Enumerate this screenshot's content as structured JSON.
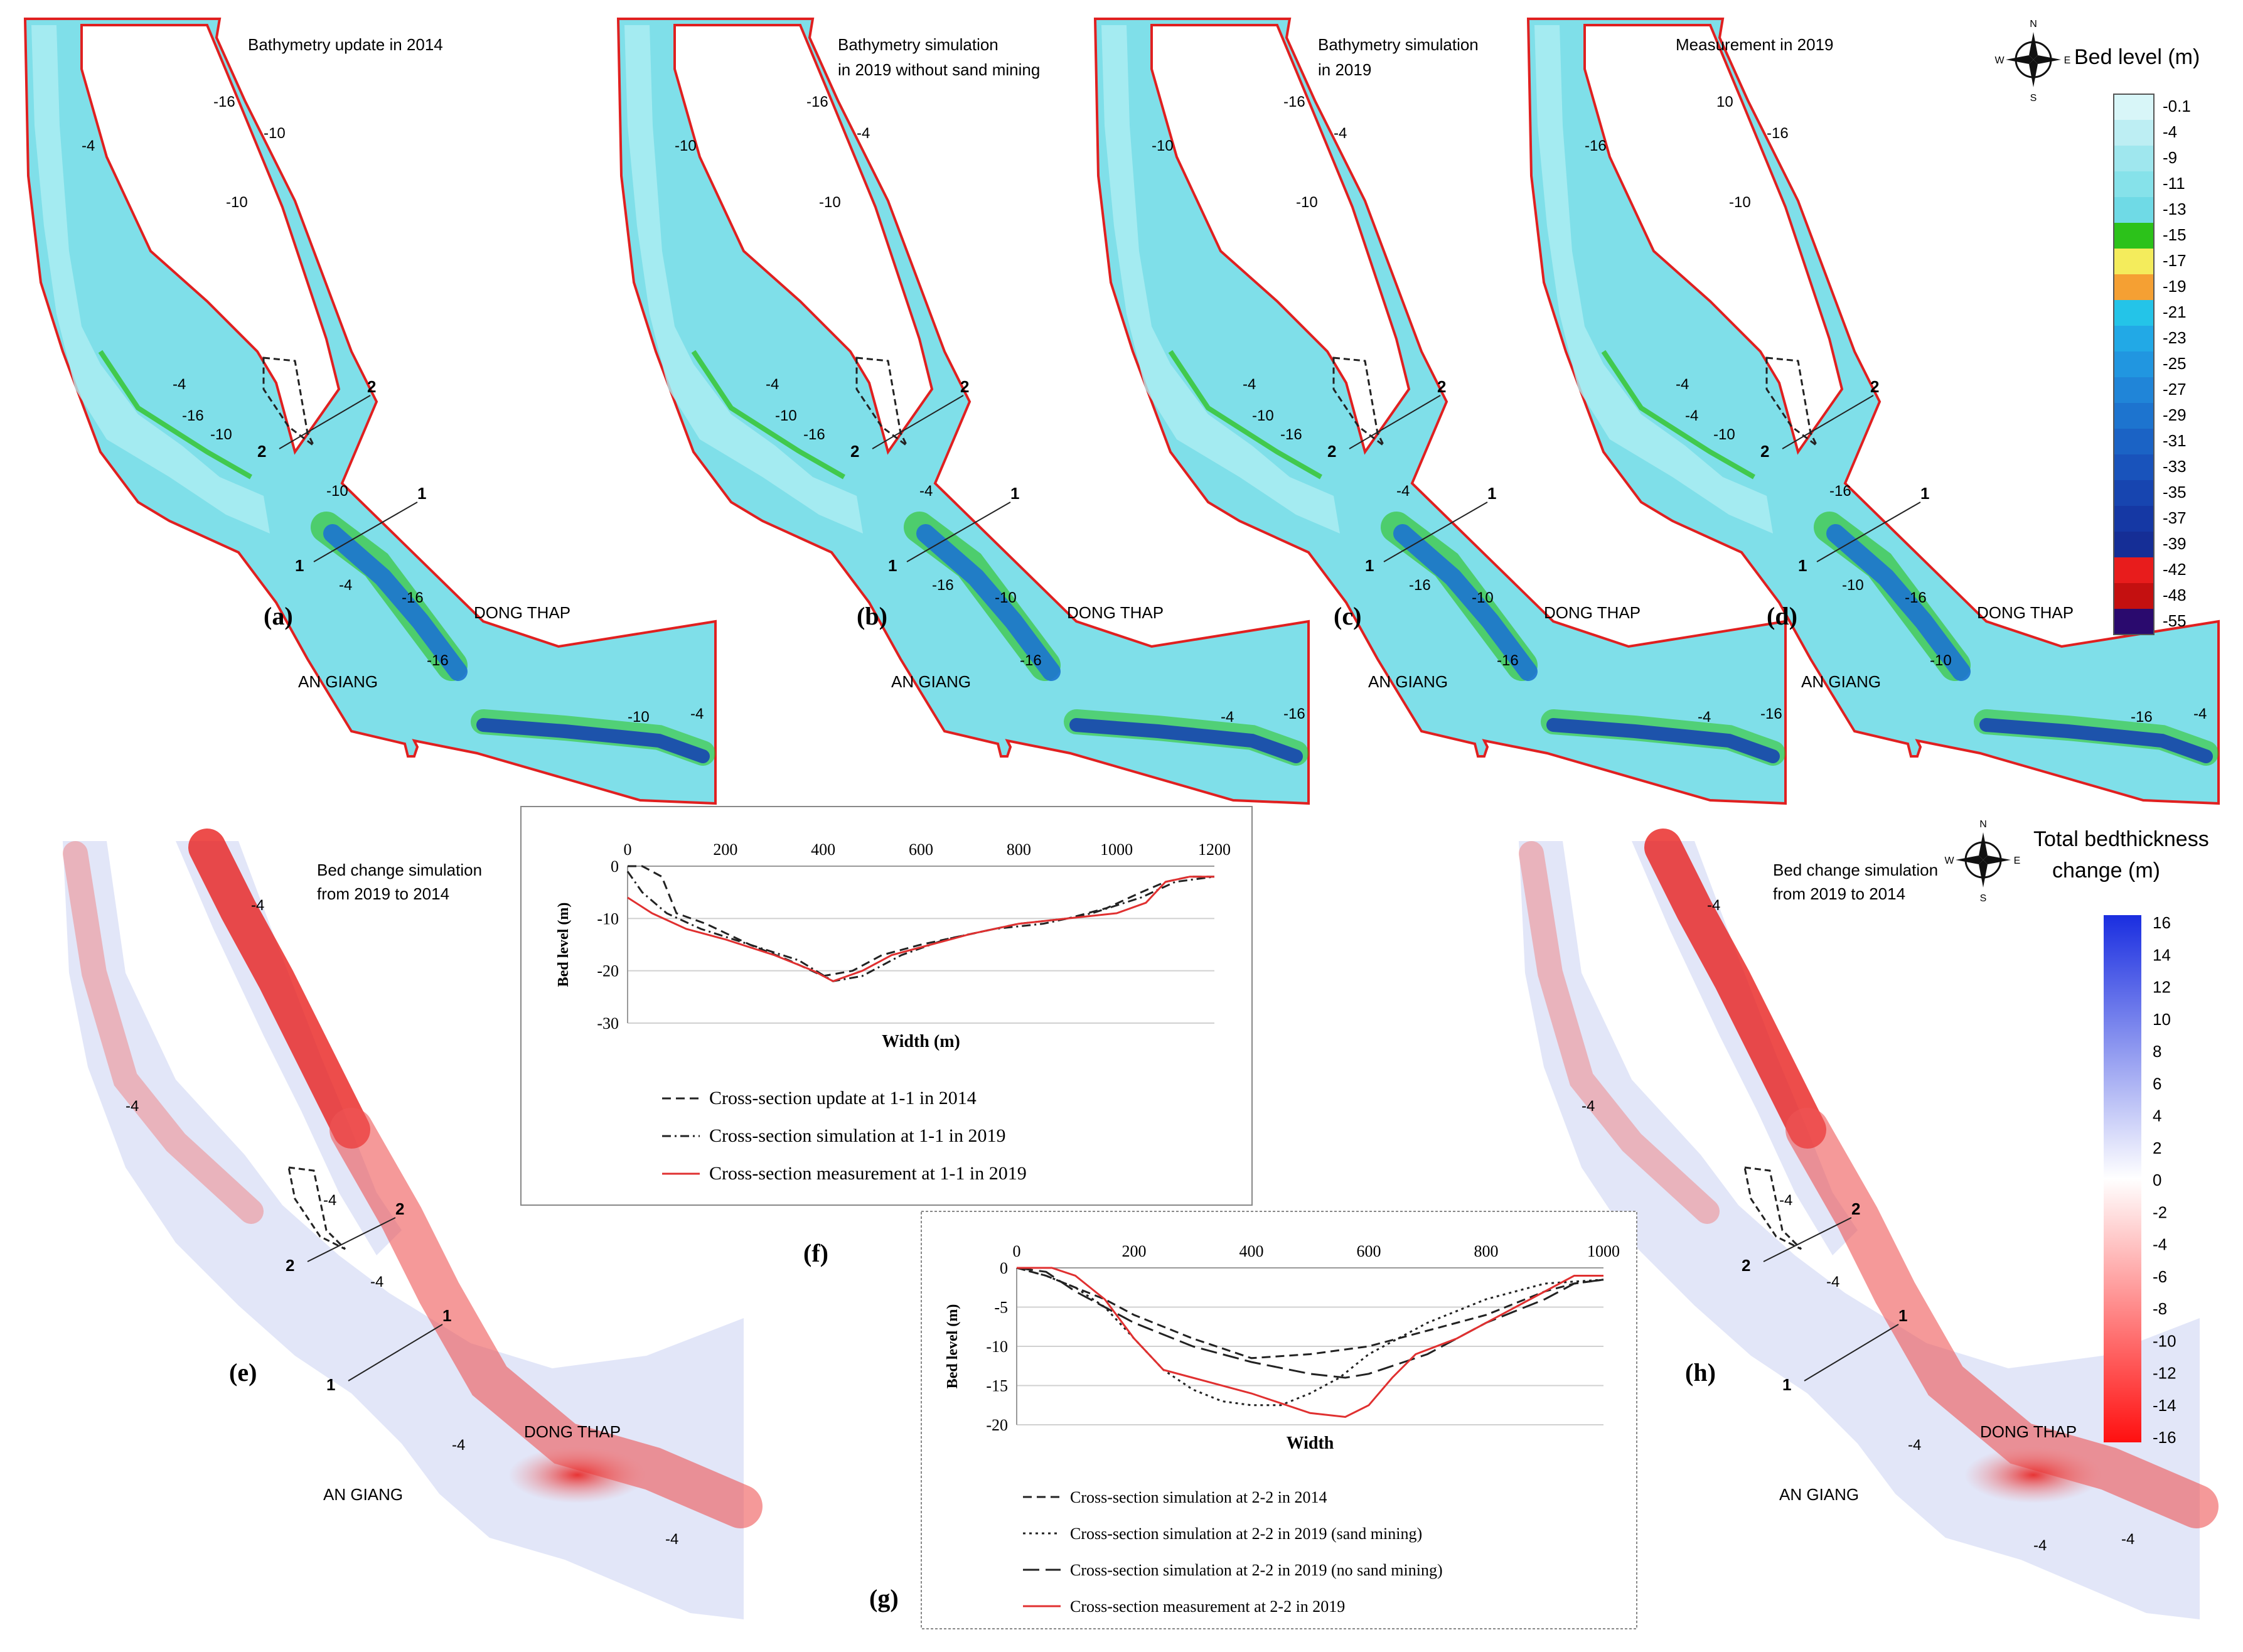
{
  "map_panels": [
    {
      "id": "a",
      "letter": "(a)",
      "title_lines": [
        "Bathymetry update in 2014"
      ],
      "contours": [
        "-4",
        "-16",
        "-10",
        "-10",
        "-4",
        "-10",
        "-16",
        "-4",
        "-10",
        "-16",
        "-16",
        "-10",
        "-4"
      ],
      "sec2_label": "2",
      "sec1_label": "1",
      "province_east": "DONG THAP",
      "province_west": "AN GIANG"
    },
    {
      "id": "b",
      "letter": "(b)",
      "title_lines": [
        "Bathymetry simulation",
        "in 2019 without sand mining"
      ],
      "contours": [
        "-10",
        "-16",
        "-4",
        "-10",
        "-4",
        "-16",
        "-10",
        "-16",
        "-4",
        "-10",
        "-16",
        "-4",
        "-16"
      ],
      "sec2_label": "2",
      "sec1_label": "1",
      "province_east": "DONG THAP",
      "province_west": "AN GIANG"
    },
    {
      "id": "c",
      "letter": "(c)",
      "title_lines": [
        "Bathymetry simulation",
        "in 2019"
      ],
      "contours": [
        "-10",
        "-16",
        "-4",
        "-10",
        "-4",
        "-16",
        "-10",
        "-16",
        "-4",
        "-10",
        "-16",
        "-4",
        "-16"
      ],
      "sec2_label": "2",
      "sec1_label": "1",
      "province_east": "DONG THAP",
      "province_west": "AN GIANG"
    },
    {
      "id": "d",
      "letter": "(d)",
      "title_lines": [
        "Measurement in 2019"
      ],
      "contours": [
        "-16",
        "10",
        "-16",
        "-10",
        "-4",
        "-10",
        "-4",
        "-10",
        "-16",
        "-16",
        "-10",
        "-16",
        "-4"
      ],
      "sec2_label": "2",
      "sec1_label": "1",
      "province_east": "DONG THAP",
      "province_west": "AN GIANG"
    }
  ],
  "bed_legend": {
    "title": "Bed level (m)",
    "labels": [
      "-0.1",
      "-4",
      "-9",
      "-11",
      "-13",
      "-15",
      "-17",
      "-19",
      "-21",
      "-23",
      "-25",
      "-27",
      "-29",
      "-31",
      "-33",
      "-35",
      "-37",
      "-39",
      "-42",
      "-48",
      "-55"
    ],
    "colors": [
      "#d8f6f8",
      "#bdeef3",
      "#9fe7ee",
      "#86e2ea",
      "#6fdae6",
      "#2cc21a",
      "#f4ec5c",
      "#f5a033",
      "#24c4e8",
      "#22a9e6",
      "#2196e0",
      "#2085d8",
      "#1d74cf",
      "#1b63c5",
      "#1953bb",
      "#1745b0",
      "#1538a4",
      "#152e96",
      "#e81c1c",
      "#c41010",
      "#2a0a6e"
    ]
  },
  "change_panels": [
    {
      "id": "e",
      "letter": "(e)",
      "title_lines": [
        "Bed change simulation",
        "from 2019 to 2014"
      ],
      "contours": [
        "-4",
        "-4",
        "-4",
        "-4",
        "-4",
        "-4"
      ],
      "sec2_label": "2",
      "sec1_label": "1",
      "province_east": "DONG THAP",
      "province_west": "AN GIANG"
    },
    {
      "id": "h",
      "letter": "(h)",
      "title_lines": [
        "Bed change simulation",
        "from 2019 to 2014"
      ],
      "contours": [
        "-4",
        "-4",
        "-4",
        "-4",
        "-4",
        "-4",
        "-4"
      ],
      "sec2_label": "2",
      "sec1_label": "1",
      "province_east": "DONG THAP",
      "province_west": "AN GIANG"
    }
  ],
  "change_legend": {
    "title_lines": [
      "Total bedthickness",
      "change (m)"
    ],
    "labels": [
      "16",
      "14",
      "12",
      "10",
      "8",
      "6",
      "4",
      "2",
      "0",
      "-2",
      "-4",
      "-6",
      "-8",
      "-10",
      "-12",
      "-14",
      "-16"
    ]
  },
  "compass": {
    "n": "N",
    "s": "S",
    "e": "E",
    "w": "W"
  },
  "chart_data": [
    {
      "id": "f",
      "letter": "(f)",
      "type": "line",
      "xlabel": "Width (m)",
      "ylabel": "Bed level (m)",
      "xlim": [
        0,
        1200
      ],
      "ylim": [
        -30,
        0
      ],
      "xticks": [
        0,
        200,
        400,
        600,
        800,
        1000,
        1200
      ],
      "yticks": [
        0,
        -10,
        -20,
        -30
      ],
      "series": [
        {
          "name": "Cross-section update at 1-1 in 2014",
          "style": "dash",
          "color": "#222222",
          "x": [
            0,
            30,
            70,
            100,
            160,
            250,
            330,
            400,
            460,
            520,
            600,
            700,
            800,
            900,
            980,
            1050,
            1100,
            1150,
            1200
          ],
          "y": [
            0,
            0,
            -2,
            -9,
            -11,
            -15,
            -18,
            -21,
            -20,
            -17,
            -15,
            -13,
            -11,
            -10,
            -8,
            -5,
            -3,
            -2,
            -2
          ]
        },
        {
          "name": "Cross-section simulation at 1-1 in 2019",
          "style": "dashdot",
          "color": "#222222",
          "x": [
            0,
            30,
            80,
            150,
            250,
            350,
            420,
            480,
            560,
            650,
            750,
            850,
            950,
            1050,
            1120,
            1200
          ],
          "y": [
            -1,
            -5,
            -9,
            -12,
            -15,
            -18,
            -22,
            -21,
            -17,
            -14,
            -12,
            -11,
            -9,
            -6,
            -3,
            -2
          ]
        },
        {
          "name": "Cross-section measurement at 1-1 in 2019",
          "style": "solid",
          "color": "#e03030",
          "x": [
            0,
            50,
            120,
            200,
            300,
            380,
            420,
            480,
            540,
            620,
            700,
            800,
            900,
            1000,
            1060,
            1100,
            1150,
            1200
          ],
          "y": [
            -6,
            -9,
            -12,
            -14,
            -17,
            -20,
            -22,
            -20,
            -17,
            -15,
            -13,
            -11,
            -10,
            -9,
            -7,
            -3,
            -2,
            -2
          ]
        }
      ]
    },
    {
      "id": "g",
      "letter": "(g)",
      "type": "line",
      "xlabel": "Width",
      "ylabel": "Bed level (m)",
      "xlim": [
        0,
        1000
      ],
      "ylim": [
        -20,
        0
      ],
      "xticks": [
        0,
        200,
        400,
        600,
        800,
        1000
      ],
      "yticks": [
        0,
        -5,
        -10,
        -15,
        -20
      ],
      "series": [
        {
          "name": "Cross-section simulation at 2-2 in 2014",
          "style": "dash",
          "color": "#222222",
          "x": [
            0,
            50,
            100,
            150,
            200,
            300,
            400,
            500,
            600,
            700,
            800,
            900,
            950,
            1000
          ],
          "y": [
            0,
            -1,
            -2.5,
            -4,
            -6,
            -9,
            -11.5,
            -11,
            -10,
            -8,
            -6,
            -3,
            -2,
            -1.5
          ]
        },
        {
          "name": "Cross-section simulation at 2-2 in 2019 (sand mining)",
          "style": "dot",
          "color": "#222222",
          "x": [
            0,
            50,
            100,
            150,
            200,
            250,
            300,
            350,
            400,
            450,
            500,
            550,
            600,
            700,
            800,
            900,
            1000
          ],
          "y": [
            0,
            -1,
            -2.5,
            -5,
            -9,
            -13,
            -15.5,
            -17,
            -17.5,
            -17.5,
            -16,
            -14,
            -11,
            -7,
            -4,
            -2,
            -1.5
          ]
        },
        {
          "name": "Cross-section simulation at 2-2 in 2019 (no sand mining)",
          "style": "longdash",
          "color": "#222222",
          "x": [
            0,
            50,
            100,
            150,
            200,
            300,
            400,
            500,
            560,
            600,
            700,
            800,
            900,
            950,
            1000
          ],
          "y": [
            0,
            -0.5,
            -3,
            -5,
            -7,
            -10,
            -12,
            -13.5,
            -14,
            -13.5,
            -11,
            -7,
            -4,
            -2,
            -1.5
          ]
        },
        {
          "name": "Cross-section measurement at 2-2 in 2019",
          "style": "solid",
          "color": "#e03030",
          "x": [
            0,
            60,
            100,
            150,
            200,
            250,
            300,
            400,
            500,
            560,
            600,
            640,
            680,
            750,
            850,
            950,
            1000
          ],
          "y": [
            0,
            0,
            -1,
            -4,
            -9,
            -13,
            -14,
            -16,
            -18.5,
            -19,
            -17.5,
            -14,
            -11,
            -9,
            -5,
            -1,
            -1
          ]
        }
      ]
    }
  ]
}
